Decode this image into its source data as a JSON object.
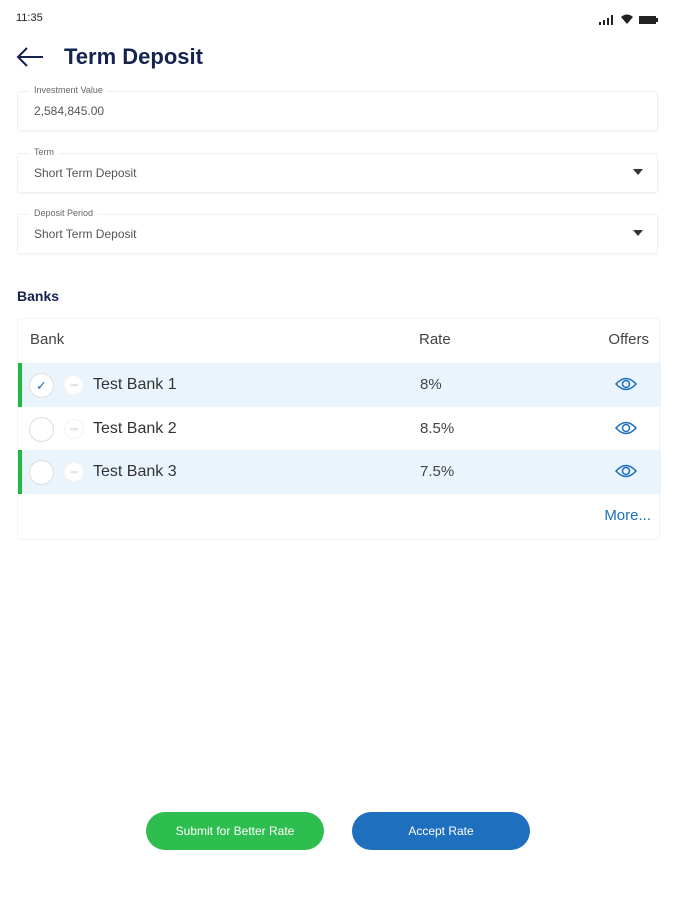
{
  "status_bar": {
    "time": "11:35"
  },
  "header": {
    "title": "Term Deposit"
  },
  "form": {
    "investment": {
      "label": "Investment Value",
      "value": "2,584,845.00"
    },
    "term": {
      "label": "Term",
      "value": "Short Term Deposit"
    },
    "period": {
      "label": "Deposit Period",
      "value": "Short Term Deposit"
    }
  },
  "banks": {
    "title": "Banks",
    "columns": {
      "bank": "Bank",
      "rate": "Rate",
      "offers": "Offers"
    },
    "rows": [
      {
        "name": "Test Bank 1",
        "rate": "8%",
        "logo": "logo",
        "selected": true,
        "highlighted": true
      },
      {
        "name": "Test Bank 2",
        "rate": "8.5%",
        "logo": "logo",
        "selected": false,
        "highlighted": false
      },
      {
        "name": "Test Bank 3",
        "rate": "7.5%",
        "logo": "logo",
        "selected": false,
        "highlighted": true
      }
    ],
    "more": "More..."
  },
  "actions": {
    "submit": "Submit for Better Rate",
    "accept": "Accept Rate"
  },
  "colors": {
    "primary": "#1f6fbf",
    "success": "#2ebd4f",
    "navy": "#14234f",
    "highlight": "#eaf4fd"
  }
}
